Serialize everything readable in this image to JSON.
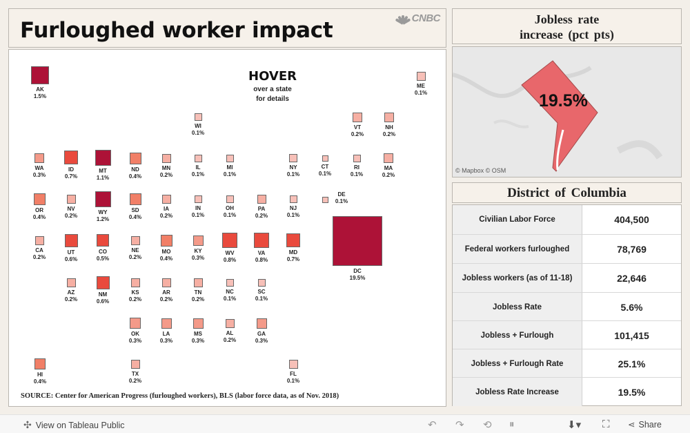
{
  "header": {
    "title": "Furloughed worker impact",
    "logo_text": "CNBC"
  },
  "map": {
    "hover_title": "HOVER",
    "hover_line1": "over a state",
    "hover_line2": "for details",
    "source": "SOURCE: Center for American Progress (furloughed workers), BLS (labor force data, as of Nov. 2018)",
    "states": [
      {
        "abbr": "AK",
        "label": "1.5%",
        "value": 1.5
      },
      {
        "abbr": "ME",
        "label": "0.1%",
        "value": 0.1
      },
      {
        "abbr": "WI",
        "label": "0.1%",
        "value": 0.1
      },
      {
        "abbr": "VT",
        "label": "0.2%",
        "value": 0.2
      },
      {
        "abbr": "NH",
        "label": "0.2%",
        "value": 0.2
      },
      {
        "abbr": "WA",
        "label": "0.3%",
        "value": 0.3
      },
      {
        "abbr": "ID",
        "label": "0.7%",
        "value": 0.7
      },
      {
        "abbr": "MT",
        "label": "1.1%",
        "value": 1.1
      },
      {
        "abbr": "ND",
        "label": "0.4%",
        "value": 0.4
      },
      {
        "abbr": "MN",
        "label": "0.2%",
        "value": 0.2
      },
      {
        "abbr": "IL",
        "label": "0.1%",
        "value": 0.1
      },
      {
        "abbr": "MI",
        "label": "0.1%",
        "value": 0.1
      },
      {
        "abbr": "NY",
        "label": "0.1%",
        "value": 0.1
      },
      {
        "abbr": "CT",
        "label": "0.1%",
        "value": 0.1
      },
      {
        "abbr": "RI",
        "label": "0.1%",
        "value": 0.1
      },
      {
        "abbr": "MA",
        "label": "0.2%",
        "value": 0.2
      },
      {
        "abbr": "OR",
        "label": "0.4%",
        "value": 0.4
      },
      {
        "abbr": "NV",
        "label": "0.2%",
        "value": 0.2
      },
      {
        "abbr": "WY",
        "label": "1.2%",
        "value": 1.2
      },
      {
        "abbr": "SD",
        "label": "0.4%",
        "value": 0.4
      },
      {
        "abbr": "IA",
        "label": "0.2%",
        "value": 0.2
      },
      {
        "abbr": "IN",
        "label": "0.1%",
        "value": 0.1
      },
      {
        "abbr": "OH",
        "label": "0.1%",
        "value": 0.1
      },
      {
        "abbr": "PA",
        "label": "0.2%",
        "value": 0.2
      },
      {
        "abbr": "NJ",
        "label": "0.1%",
        "value": 0.1
      },
      {
        "abbr": "DE",
        "label": "0.1%",
        "value": 0.1
      },
      {
        "abbr": "CA",
        "label": "0.2%",
        "value": 0.2
      },
      {
        "abbr": "UT",
        "label": "0.6%",
        "value": 0.6
      },
      {
        "abbr": "CO",
        "label": "0.5%",
        "value": 0.5
      },
      {
        "abbr": "NE",
        "label": "0.2%",
        "value": 0.2
      },
      {
        "abbr": "MO",
        "label": "0.4%",
        "value": 0.4
      },
      {
        "abbr": "KY",
        "label": "0.3%",
        "value": 0.3
      },
      {
        "abbr": "WV",
        "label": "0.8%",
        "value": 0.8
      },
      {
        "abbr": "VA",
        "label": "0.8%",
        "value": 0.8
      },
      {
        "abbr": "MD",
        "label": "0.7%",
        "value": 0.7
      },
      {
        "abbr": "DC",
        "label": "19.5%",
        "value": 19.5
      },
      {
        "abbr": "AZ",
        "label": "0.2%",
        "value": 0.2
      },
      {
        "abbr": "NM",
        "label": "0.6%",
        "value": 0.6
      },
      {
        "abbr": "KS",
        "label": "0.2%",
        "value": 0.2
      },
      {
        "abbr": "AR",
        "label": "0.2%",
        "value": 0.2
      },
      {
        "abbr": "TN",
        "label": "0.2%",
        "value": 0.2
      },
      {
        "abbr": "NC",
        "label": "0.1%",
        "value": 0.1
      },
      {
        "abbr": "SC",
        "label": "0.1%",
        "value": 0.1
      },
      {
        "abbr": "OK",
        "label": "0.3%",
        "value": 0.3
      },
      {
        "abbr": "LA",
        "label": "0.3%",
        "value": 0.3
      },
      {
        "abbr": "MS",
        "label": "0.3%",
        "value": 0.3
      },
      {
        "abbr": "AL",
        "label": "0.2%",
        "value": 0.2
      },
      {
        "abbr": "GA",
        "label": "0.3%",
        "value": 0.3
      },
      {
        "abbr": "HI",
        "label": "0.4%",
        "value": 0.4
      },
      {
        "abbr": "TX",
        "label": "0.2%",
        "value": 0.2
      },
      {
        "abbr": "FL",
        "label": "0.1%",
        "value": 0.1
      }
    ]
  },
  "detail": {
    "heading_line1": "Jobless rate",
    "heading_line2": "increase (pct pts)",
    "mini_value": "19.5%",
    "mini_credit": "© Mapbox © OSM",
    "state_name": "District of Columbia",
    "rows": [
      {
        "label": "Civilian Labor Force",
        "value": "404,500"
      },
      {
        "label": "Federal workers furloughed",
        "value": "78,769"
      },
      {
        "label": "Jobless workers (as of 11-18)",
        "value": "22,646"
      },
      {
        "label": "Jobless Rate",
        "value": "5.6%"
      },
      {
        "label": "Jobless + Furlough",
        "value": "101,415"
      },
      {
        "label": "Jobless + Furlough Rate",
        "value": "25.1%"
      },
      {
        "label": "Jobless Rate Increase",
        "value": "19.5%"
      }
    ]
  },
  "colors": {
    "high": "#ad1237",
    "mid": "#e94a3d",
    "low": "#f7c0b8"
  },
  "toolbar": {
    "view_label": "View on Tableau Public",
    "share_label": "Share"
  }
}
